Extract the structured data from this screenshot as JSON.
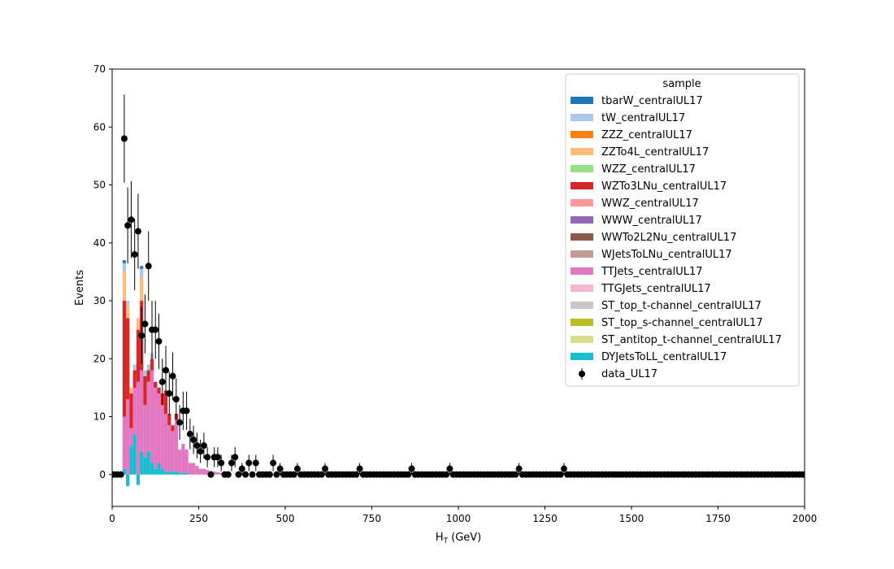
{
  "chart_data": {
    "type": "bar",
    "stacked": true,
    "xlabel_main": "H",
    "xlabel_sub": "T",
    "xlabel_rest": " (GeV)",
    "ylabel": "Events",
    "xlim": [
      0,
      2000
    ],
    "ylim": [
      -5.5,
      70
    ],
    "xticks": [
      0,
      250,
      500,
      750,
      1000,
      1250,
      1500,
      1750,
      2000
    ],
    "yticks": [
      0,
      10,
      20,
      30,
      40,
      50,
      60,
      70
    ],
    "bin_width": 10,
    "legend_title": "sample",
    "legend_position": "top-right",
    "series": [
      {
        "name": "tbarW_centralUL17",
        "color": "#1f77b4"
      },
      {
        "name": "tW_centralUL17",
        "color": "#aec7e8"
      },
      {
        "name": "ZZZ_centralUL17",
        "color": "#ff7f0e"
      },
      {
        "name": "ZZTo4L_centralUL17",
        "color": "#ffbb78"
      },
      {
        "name": "WZZ_centralUL17",
        "color": "#98df8a"
      },
      {
        "name": "WZTo3LNu_centralUL17",
        "color": "#d62728"
      },
      {
        "name": "WWZ_centralUL17",
        "color": "#ff9896"
      },
      {
        "name": "WWW_centralUL17",
        "color": "#9467bd"
      },
      {
        "name": "WWTo2L2Nu_centralUL17",
        "color": "#8c564b"
      },
      {
        "name": "WJetsToLNu_centralUL17",
        "color": "#c49c94"
      },
      {
        "name": "TTJets_centralUL17",
        "color": "#e377c2"
      },
      {
        "name": "TTGJets_centralUL17",
        "color": "#f7b6d2"
      },
      {
        "name": "ST_top_t-channel_centralUL17",
        "color": "#c7c7c7"
      },
      {
        "name": "ST_top_s-channel_centralUL17",
        "color": "#bcbd22"
      },
      {
        "name": "ST_antitop_t-channel_centralUL17",
        "color": "#dbdb8d"
      },
      {
        "name": "DYJetsToLL_centralUL17",
        "color": "#17becf"
      }
    ],
    "stack_bins": [
      {
        "x": 30,
        "DY": 1,
        "TT": 9,
        "WZ": 20,
        "ZZ": 5,
        "tW": 1.5,
        "tbarW": 0.5
      },
      {
        "x": 40,
        "DY": -2,
        "TT": 13,
        "WZ": 14,
        "ZZ": 2,
        "tW": 1
      },
      {
        "x": 50,
        "DY": 5,
        "TT": 3,
        "WZ": 6,
        "ZZ": 1
      },
      {
        "x": 60,
        "DY": 7,
        "TT": 8,
        "WZ": 3,
        "tW": 1
      },
      {
        "x": 70,
        "DY": -1.8,
        "TT": 16,
        "WZ": 9,
        "ZZ": 2
      },
      {
        "x": 80,
        "DY": 4,
        "TT": 14,
        "WZ": 12,
        "ZZ": 4,
        "tW": 1.5,
        "tbarW": 0.5
      },
      {
        "x": 90,
        "DY": 3,
        "TT": 9,
        "WZ": 5,
        "tW": 1
      },
      {
        "x": 100,
        "DY": 4,
        "TT": 12,
        "WZ": 2,
        "tW": 1
      },
      {
        "x": 110,
        "DY": 2,
        "TT": 16,
        "WZ": 2,
        "tW": 1
      },
      {
        "x": 120,
        "DY": 1,
        "TT": 14,
        "WZ": 1
      },
      {
        "x": 130,
        "DY": 2,
        "TT": 12,
        "WZ": 1
      },
      {
        "x": 140,
        "DY": 1,
        "TT": 11,
        "WZ": 2
      },
      {
        "x": 150,
        "DY": 0.5,
        "TT": 10,
        "WZ": 4
      },
      {
        "x": 160,
        "DY": 0.5,
        "TT": 8,
        "WZ": 2
      },
      {
        "x": 170,
        "DY": 0.5,
        "TT": 7,
        "WZ": 1
      },
      {
        "x": 180,
        "DY": 0.5,
        "TT": 9,
        "WZ": 1
      },
      {
        "x": 190,
        "DY": 0.3,
        "TT": 4
      },
      {
        "x": 200,
        "DY": 0.3,
        "TT": 5
      },
      {
        "x": 210,
        "DY": 0.3,
        "TT": 4
      },
      {
        "x": 220,
        "TT": 2
      },
      {
        "x": 230,
        "TT": 2
      },
      {
        "x": 240,
        "TT": 1.5
      },
      {
        "x": 250,
        "TT": 1
      },
      {
        "x": 260,
        "TT": 1
      },
      {
        "x": 270,
        "TT": 0.8
      },
      {
        "x": 280,
        "TT": 0.6
      },
      {
        "x": 290,
        "TT": 0.5
      },
      {
        "x": 300,
        "TT": 0.4
      },
      {
        "x": 310,
        "TT": 0.3
      }
    ],
    "data_points": [
      {
        "x": 5,
        "y": 0
      },
      {
        "x": 15,
        "y": 0
      },
      {
        "x": 25,
        "y": 0
      },
      {
        "x": 35,
        "y": 58
      },
      {
        "x": 45,
        "y": 43
      },
      {
        "x": 55,
        "y": 44
      },
      {
        "x": 65,
        "y": 38
      },
      {
        "x": 75,
        "y": 42
      },
      {
        "x": 85,
        "y": 24
      },
      {
        "x": 95,
        "y": 26
      },
      {
        "x": 105,
        "y": 36
      },
      {
        "x": 115,
        "y": 25
      },
      {
        "x": 125,
        "y": 25
      },
      {
        "x": 135,
        "y": 23
      },
      {
        "x": 145,
        "y": 16
      },
      {
        "x": 155,
        "y": 18
      },
      {
        "x": 165,
        "y": 14
      },
      {
        "x": 175,
        "y": 17
      },
      {
        "x": 185,
        "y": 13
      },
      {
        "x": 195,
        "y": 9
      },
      {
        "x": 205,
        "y": 11
      },
      {
        "x": 215,
        "y": 11
      },
      {
        "x": 225,
        "y": 7
      },
      {
        "x": 235,
        "y": 6
      },
      {
        "x": 245,
        "y": 5
      },
      {
        "x": 255,
        "y": 4
      },
      {
        "x": 265,
        "y": 5
      },
      {
        "x": 275,
        "y": 3
      },
      {
        "x": 285,
        "y": 0
      },
      {
        "x": 295,
        "y": 3
      },
      {
        "x": 305,
        "y": 3
      },
      {
        "x": 315,
        "y": 2
      },
      {
        "x": 325,
        "y": 0
      },
      {
        "x": 335,
        "y": 0
      },
      {
        "x": 345,
        "y": 2
      },
      {
        "x": 355,
        "y": 3
      },
      {
        "x": 365,
        "y": 0
      },
      {
        "x": 375,
        "y": 1
      },
      {
        "x": 395,
        "y": 2
      },
      {
        "x": 405,
        "y": 0
      },
      {
        "x": 415,
        "y": 2
      },
      {
        "x": 465,
        "y": 2
      },
      {
        "x": 485,
        "y": 1
      },
      {
        "x": 535,
        "y": 1
      },
      {
        "x": 615,
        "y": 1
      },
      {
        "x": 715,
        "y": 1
      },
      {
        "x": 865,
        "y": 1
      },
      {
        "x": 975,
        "y": 1
      },
      {
        "x": 1175,
        "y": 1
      },
      {
        "x": 1305,
        "y": 1
      }
    ]
  }
}
